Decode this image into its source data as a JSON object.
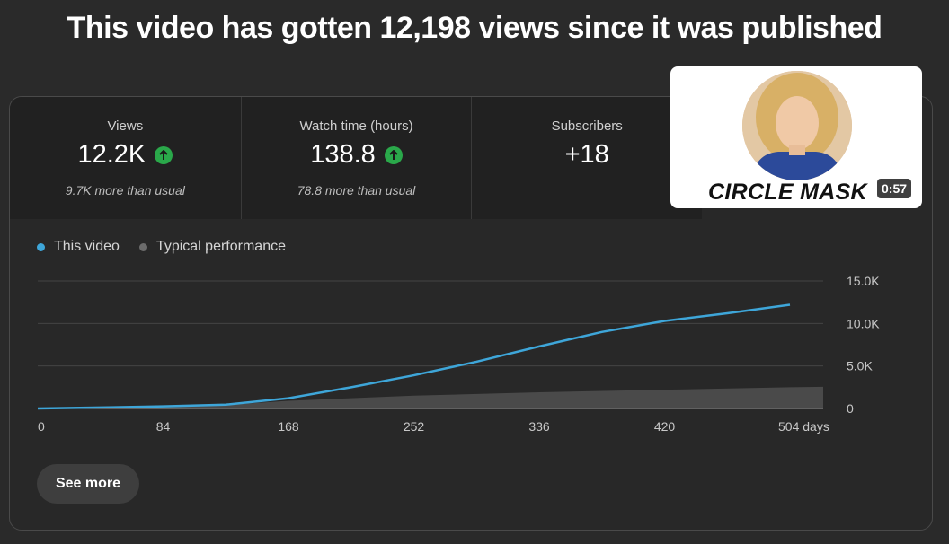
{
  "headline": "This video has gotten 12,198 views since it was published",
  "metrics": [
    {
      "label": "Views",
      "value": "12.2K",
      "sub": "9.7K more than usual",
      "trend": "up"
    },
    {
      "label": "Watch time (hours)",
      "value": "138.8",
      "sub": "78.8 more than usual",
      "trend": "up"
    },
    {
      "label": "Subscribers",
      "value": "+18",
      "sub": ""
    }
  ],
  "legend": [
    {
      "label": "This video",
      "color": "#3ea6d9"
    },
    {
      "label": "Typical performance",
      "color": "#6b6b6b"
    }
  ],
  "chart_data": {
    "type": "line",
    "xunit": "days",
    "x_ticks": [
      "0",
      "84",
      "168",
      "252",
      "336",
      "420",
      "504 days"
    ],
    "y_ticks": [
      "0",
      "5.0K",
      "10.0K",
      "15.0K"
    ],
    "xlim": [
      0,
      520
    ],
    "ylim": [
      0,
      15000
    ],
    "series": [
      {
        "name": "This video",
        "color": "#3ea6d9",
        "type": "line",
        "x": [
          0,
          42,
          84,
          126,
          168,
          210,
          252,
          294,
          336,
          378,
          420,
          462,
          504
        ],
        "y": [
          0,
          120,
          250,
          450,
          1200,
          2500,
          3900,
          5500,
          7300,
          9000,
          10300,
          11200,
          12200
        ]
      },
      {
        "name": "Typical performance",
        "color": "#4a4a4a",
        "type": "area",
        "x": [
          0,
          84,
          126,
          168,
          252,
          336,
          420,
          504
        ],
        "y": [
          0,
          200,
          400,
          900,
          1500,
          1900,
          2200,
          2500
        ]
      }
    ]
  },
  "see_more": "See more",
  "thumbnail": {
    "text": "CIRCLE MASK",
    "duration": "0:57"
  }
}
